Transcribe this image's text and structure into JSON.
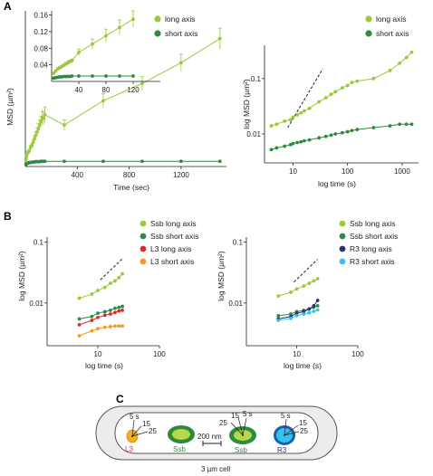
{
  "panels": {
    "A": "A",
    "B": "B",
    "C": "C"
  },
  "colors": {
    "long": "#9bc93a",
    "short": "#2e8b3e",
    "L3_long": "#e02a2a",
    "L3_short": "#f39a26",
    "R3_long": "#2b2f7c",
    "R3_short": "#36c2ee",
    "cell_fill": "#ececec"
  },
  "chart_data": [
    {
      "id": "A_main",
      "type": "line",
      "xlabel": "Time (sec)",
      "ylabel": "MSD (µm²)",
      "xlim": [
        0,
        1550
      ],
      "ylim": [
        0,
        0.45
      ],
      "xticks": [
        "400",
        "800",
        "1200"
      ],
      "xtick_values": [
        400,
        800,
        1200
      ],
      "series": [
        {
          "name": "long axis",
          "key": "long",
          "x": [
            5,
            10,
            20,
            30,
            40,
            50,
            60,
            70,
            80,
            90,
            100,
            110,
            120,
            130,
            140,
            150,
            300,
            600,
            900,
            1200,
            1500
          ],
          "y": [
            0.02,
            0.03,
            0.04,
            0.045,
            0.055,
            0.06,
            0.07,
            0.08,
            0.09,
            0.1,
            0.11,
            0.12,
            0.13,
            0.14,
            0.14,
            0.15,
            0.12,
            0.19,
            0.24,
            0.3,
            0.37
          ],
          "err": [
            0.003,
            0.004,
            0.005,
            0.005,
            0.006,
            0.006,
            0.007,
            0.008,
            0.01,
            0.012,
            0.014,
            0.015,
            0.016,
            0.018,
            0.02,
            0.022,
            0.015,
            0.02,
            0.02,
            0.025,
            0.03
          ]
        },
        {
          "name": "short axis",
          "key": "short",
          "x": [
            5,
            10,
            20,
            30,
            40,
            50,
            60,
            70,
            80,
            90,
            100,
            110,
            120,
            130,
            140,
            150,
            300,
            600,
            900,
            1200,
            1500
          ],
          "y": [
            0.006,
            0.008,
            0.01,
            0.011,
            0.012,
            0.012,
            0.013,
            0.013,
            0.014,
            0.014,
            0.014,
            0.014,
            0.015,
            0.015,
            0.015,
            0.015,
            0.015,
            0.015,
            0.015,
            0.015,
            0.015
          ],
          "err": [
            0,
            0,
            0,
            0,
            0,
            0,
            0,
            0,
            0,
            0,
            0,
            0,
            0,
            0,
            0,
            0,
            0,
            0,
            0,
            0,
            0
          ]
        }
      ]
    },
    {
      "id": "A_inset",
      "type": "line",
      "xlim": [
        0,
        160
      ],
      "ylim": [
        0,
        0.17
      ],
      "xticks": [
        "40",
        "80",
        "120"
      ],
      "xtick_values": [
        40,
        80,
        120
      ],
      "yticks": [
        "0.04",
        "0.08",
        "0.12",
        "0.16"
      ],
      "ytick_values": [
        0.04,
        0.08,
        0.12,
        0.16
      ],
      "series": [
        {
          "name": "long axis",
          "key": "long",
          "x": [
            3,
            6,
            9,
            12,
            15,
            18,
            21,
            24,
            27,
            30,
            40,
            60,
            80,
            100,
            120
          ],
          "y": [
            0.02,
            0.025,
            0.03,
            0.033,
            0.036,
            0.039,
            0.042,
            0.045,
            0.048,
            0.05,
            0.07,
            0.09,
            0.11,
            0.13,
            0.15
          ],
          "err": [
            0.002,
            0.002,
            0.003,
            0.003,
            0.003,
            0.003,
            0.004,
            0.004,
            0.004,
            0.004,
            0.008,
            0.012,
            0.016,
            0.018,
            0.02
          ]
        },
        {
          "name": "short axis",
          "key": "short",
          "x": [
            3,
            6,
            9,
            12,
            15,
            18,
            21,
            24,
            27,
            30,
            40,
            60,
            80,
            100,
            120
          ],
          "y": [
            0.008,
            0.009,
            0.01,
            0.011,
            0.011,
            0.012,
            0.012,
            0.012,
            0.012,
            0.013,
            0.013,
            0.013,
            0.013,
            0.013,
            0.013
          ],
          "err": [
            0,
            0,
            0,
            0,
            0,
            0,
            0,
            0,
            0,
            0,
            0,
            0,
            0,
            0,
            0
          ]
        }
      ]
    },
    {
      "id": "A_log",
      "type": "line",
      "scale": "log",
      "xlabel": "log time (s)",
      "ylabel": "log MSD (µm²)",
      "xlim": [
        3,
        2000
      ],
      "ylim": [
        0.003,
        0.4
      ],
      "xticks": [
        "10",
        "100",
        "1000"
      ],
      "xtick_values": [
        10,
        100,
        1000
      ],
      "yticks": [
        "0.01",
        "0.1"
      ],
      "ytick_values": [
        0.01,
        0.1
      ],
      "slope_line": {
        "x": [
          8,
          35
        ],
        "y": [
          0.013,
          0.15
        ]
      },
      "series": [
        {
          "name": "long axis",
          "key": "long",
          "x": [
            4,
            5,
            7,
            9,
            10,
            12,
            14,
            16,
            20,
            30,
            40,
            50,
            60,
            80,
            100,
            120,
            150,
            300,
            600,
            900,
            1200,
            1500
          ],
          "y": [
            0.014,
            0.015,
            0.017,
            0.018,
            0.02,
            0.022,
            0.024,
            0.026,
            0.029,
            0.038,
            0.045,
            0.052,
            0.058,
            0.068,
            0.075,
            0.085,
            0.09,
            0.1,
            0.14,
            0.19,
            0.24,
            0.3
          ]
        },
        {
          "name": "short axis",
          "key": "short",
          "x": [
            4,
            5,
            7,
            9,
            10,
            12,
            14,
            16,
            20,
            30,
            40,
            50,
            60,
            80,
            100,
            120,
            150,
            300,
            600,
            900,
            1200,
            1500
          ],
          "y": [
            0.0052,
            0.0056,
            0.006,
            0.0064,
            0.0067,
            0.007,
            0.0072,
            0.0075,
            0.0078,
            0.0085,
            0.009,
            0.0095,
            0.01,
            0.0105,
            0.011,
            0.0115,
            0.012,
            0.013,
            0.014,
            0.015,
            0.015,
            0.015
          ]
        }
      ]
    },
    {
      "id": "B_left",
      "type": "line",
      "scale": "log",
      "xlabel": "log time (s)",
      "ylabel": "log MSD (µm²)",
      "xlim": [
        1.5,
        100
      ],
      "ylim": [
        0.002,
        0.12
      ],
      "xticks": [
        "10",
        "100"
      ],
      "xtick_values": [
        10,
        100
      ],
      "yticks": [
        "0.01",
        "0.1"
      ],
      "ytick_values": [
        0.01,
        0.1
      ],
      "slope_line": {
        "x": [
          11,
          26
        ],
        "y": [
          0.024,
          0.055
        ]
      },
      "series": [
        {
          "name": "Ssb long axis",
          "key": "long",
          "x": [
            5,
            8,
            10,
            13,
            16,
            19,
            22,
            25
          ],
          "y": [
            0.012,
            0.014,
            0.016,
            0.018,
            0.021,
            0.023,
            0.026,
            0.03
          ]
        },
        {
          "name": "Ssb short axis",
          "key": "short",
          "x": [
            5,
            8,
            10,
            13,
            16,
            19,
            22,
            25
          ],
          "y": [
            0.0055,
            0.006,
            0.0068,
            0.0072,
            0.0076,
            0.0082,
            0.0085,
            0.0088
          ]
        },
        {
          "name": "L3 long axis",
          "key": "L3_long",
          "x": [
            5,
            8,
            10,
            13,
            16,
            19,
            22,
            25
          ],
          "y": [
            0.0044,
            0.0052,
            0.0058,
            0.0063,
            0.0066,
            0.007,
            0.0074,
            0.0076
          ]
        },
        {
          "name": "L3 short axis",
          "key": "L3_short",
          "x": [
            5,
            8,
            10,
            13,
            16,
            19,
            22,
            25
          ],
          "y": [
            0.0029,
            0.0035,
            0.0038,
            0.004,
            0.0041,
            0.0042,
            0.0042,
            0.0042
          ]
        }
      ]
    },
    {
      "id": "B_right",
      "type": "line",
      "scale": "log",
      "xlabel": "log time (s)",
      "ylabel": "log MSD (µm²)",
      "xlim": [
        1.5,
        100
      ],
      "ylim": [
        0.002,
        0.12
      ],
      "xticks": [
        "10",
        "100"
      ],
      "xtick_values": [
        10,
        100
      ],
      "yticks": [
        "0.01",
        "0.1"
      ],
      "ytick_values": [
        0.01,
        0.1
      ],
      "slope_line": {
        "x": [
          9,
          22
        ],
        "y": [
          0.022,
          0.052
        ]
      },
      "series": [
        {
          "name": "Ssb long axis",
          "key": "long",
          "x": [
            5,
            8,
            10,
            13,
            16,
            19,
            22
          ],
          "y": [
            0.013,
            0.015,
            0.017,
            0.019,
            0.021,
            0.023,
            0.025
          ]
        },
        {
          "name": "Ssb short axis",
          "key": "short",
          "x": [
            5,
            8,
            10,
            13,
            16,
            19,
            22
          ],
          "y": [
            0.0062,
            0.0066,
            0.0072,
            0.0076,
            0.008,
            0.0085,
            0.009
          ]
        },
        {
          "name": "R3 long axis",
          "key": "R3_long",
          "x": [
            5,
            8,
            10,
            13,
            16,
            19,
            22
          ],
          "y": [
            0.0055,
            0.006,
            0.0068,
            0.0072,
            0.008,
            0.009,
            0.011
          ]
        },
        {
          "name": "R3 short axis",
          "key": "R3_short",
          "x": [
            5,
            8,
            10,
            13,
            16,
            19,
            22
          ],
          "y": [
            0.0052,
            0.0056,
            0.0062,
            0.0066,
            0.0069,
            0.0073,
            0.0077
          ]
        }
      ]
    }
  ],
  "panel_A_legend": [
    "long axis",
    "short axis"
  ],
  "panel_B_left_legend": [
    "Ssb long axis",
    "Ssb short axis",
    "L3 long axis",
    "L3 short axis"
  ],
  "panel_B_right_legend": [
    "Ssb long axis",
    "Ssb short axis",
    "R3 long axis",
    "R3 short axis"
  ],
  "diagram": {
    "foci": [
      "L3",
      "Ssb",
      "Ssb",
      "R3"
    ],
    "time_labels_left": [
      "5 s",
      "15",
      "25"
    ],
    "time_labels_mid": [
      "15",
      "5 s",
      "25"
    ],
    "time_labels_right": [
      "5 s",
      "15",
      "25"
    ],
    "scale_bar": "200 nm",
    "cell_label": "3 µm cell"
  }
}
